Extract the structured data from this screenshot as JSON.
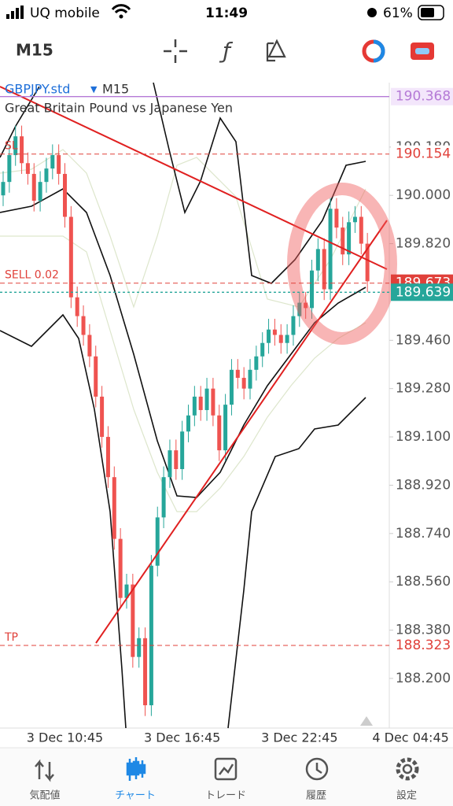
{
  "status_bar": {
    "carrier": "UQ mobile",
    "time": "11:49",
    "battery": "61%"
  },
  "toolbar": {
    "timeframe": "M15"
  },
  "chart_data": {
    "type": "candlestick",
    "title": "GBPJPY.std",
    "timeframe": "M15",
    "subtitle": "Great Britain Pound vs Japanese Yen",
    "categories": [
      null,
      null,
      null,
      null,
      null,
      null,
      null,
      null,
      null,
      null,
      "3 Dec 10:45",
      null,
      null,
      null,
      null,
      null,
      null,
      null,
      null,
      null,
      null,
      null,
      null,
      null,
      null,
      null,
      null,
      null,
      null,
      "3 Dec 16:45",
      null,
      null,
      null,
      null,
      null,
      null,
      null,
      null,
      null,
      null,
      null,
      null,
      null,
      null,
      null,
      null,
      null,
      null,
      "3 Dec 22:45",
      null,
      null,
      null,
      null,
      null,
      null,
      null,
      null,
      null,
      null,
      null,
      null,
      null,
      null,
      null,
      null,
      null,
      "4 Dec 04:45"
    ],
    "open": [
      190.0,
      190.05,
      190.15,
      190.22,
      190.12,
      190.08,
      189.98,
      190.05,
      190.1,
      190.15,
      190.08,
      189.92,
      189.62,
      189.55,
      189.48,
      189.4,
      189.25,
      189.1,
      188.95,
      188.72,
      188.5,
      188.55,
      188.28,
      188.35,
      188.1,
      188.62,
      188.8,
      188.95,
      189.05,
      188.98,
      189.12,
      189.18,
      189.25,
      189.2,
      189.28,
      189.18,
      189.05,
      189.22,
      189.35,
      189.32,
      189.28,
      189.35,
      189.4,
      189.45,
      189.5,
      189.48,
      189.45,
      189.48,
      189.55,
      189.6,
      189.58,
      189.72,
      189.8,
      189.65,
      189.95,
      189.88,
      189.78,
      189.9,
      189.92,
      189.82,
      null,
      null,
      null,
      null,
      null,
      null,
      null
    ],
    "high": [
      190.09,
      190.19,
      190.26,
      190.26,
      190.16,
      190.12,
      190.09,
      190.14,
      190.19,
      190.19,
      190.12,
      189.96,
      189.66,
      189.59,
      189.52,
      189.44,
      189.29,
      189.14,
      188.99,
      188.76,
      188.59,
      188.59,
      188.39,
      188.39,
      188.66,
      188.84,
      188.99,
      189.09,
      189.09,
      189.16,
      189.22,
      189.29,
      189.29,
      189.32,
      189.32,
      189.22,
      189.26,
      189.39,
      189.39,
      189.36,
      189.39,
      189.44,
      189.49,
      189.54,
      189.54,
      189.52,
      189.52,
      189.59,
      189.64,
      189.64,
      189.76,
      189.84,
      189.84,
      189.99,
      189.99,
      189.92,
      189.94,
      189.96,
      189.96,
      189.86,
      null,
      null,
      null,
      null,
      null,
      null,
      null
    ],
    "low": [
      189.96,
      190.01,
      190.11,
      190.08,
      190.04,
      189.94,
      189.94,
      190.01,
      190.06,
      190.04,
      189.88,
      189.58,
      189.51,
      189.44,
      189.36,
      189.21,
      189.06,
      188.91,
      188.68,
      188.46,
      188.46,
      188.24,
      188.24,
      188.06,
      188.06,
      188.58,
      188.76,
      188.91,
      188.94,
      188.94,
      189.08,
      189.14,
      189.16,
      189.16,
      189.14,
      189.01,
      189.01,
      189.18,
      189.28,
      189.24,
      189.24,
      189.31,
      189.36,
      189.41,
      189.44,
      189.41,
      189.41,
      189.44,
      189.51,
      189.54,
      189.54,
      189.68,
      189.61,
      189.61,
      189.84,
      189.74,
      189.74,
      189.86,
      189.78,
      189.64,
      null,
      null,
      null,
      null,
      null,
      null,
      null
    ],
    "close": [
      190.05,
      190.15,
      190.22,
      190.12,
      190.08,
      189.98,
      190.05,
      190.1,
      190.15,
      190.08,
      189.92,
      189.62,
      189.55,
      189.48,
      189.4,
      189.25,
      189.1,
      188.95,
      188.72,
      188.5,
      188.55,
      188.28,
      188.35,
      188.1,
      188.62,
      188.8,
      188.95,
      189.05,
      188.98,
      189.12,
      189.18,
      189.25,
      189.2,
      189.28,
      189.18,
      189.05,
      189.22,
      189.35,
      189.32,
      189.28,
      189.35,
      189.4,
      189.45,
      189.5,
      189.48,
      189.45,
      189.48,
      189.55,
      189.6,
      189.58,
      189.72,
      189.8,
      189.65,
      189.95,
      189.88,
      189.78,
      189.9,
      189.92,
      189.82,
      189.68,
      null,
      null,
      null,
      null,
      null,
      null,
      null
    ],
    "up_color": "#26a69a",
    "down_color": "#ef5350",
    "ylim": [
      188.015,
      190.42
    ],
    "yticks": [
      {
        "value": 190.18,
        "label": "190.180"
      },
      {
        "value": 190,
        "label": "190.000"
      },
      {
        "value": 189.82,
        "label": "189.820"
      },
      {
        "value": 189.46,
        "label": "189.460"
      },
      {
        "value": 189.28,
        "label": "189.280"
      },
      {
        "value": 189.1,
        "label": "189.100"
      },
      {
        "value": 188.92,
        "label": "188.920"
      },
      {
        "value": 188.74,
        "label": "188.740"
      },
      {
        "value": 188.56,
        "label": "188.560"
      },
      {
        "value": 188.38,
        "label": "188.380"
      },
      {
        "value": 188.2,
        "label": "188.200"
      }
    ],
    "price_lines": [
      {
        "value": 190.368,
        "color": "#b57ad6"
      },
      {
        "name": "SL",
        "value": 190.154,
        "color": "#e0403a"
      },
      {
        "name": "SELL 0.02",
        "value": 189.673,
        "color": "#e0403a"
      },
      {
        "value": 189.639,
        "color": "#26a69a"
      },
      {
        "name": "TP",
        "value": 188.323,
        "color": "#e0403a"
      }
    ]
  },
  "tabs": [
    "気配値",
    "チャート",
    "トレード",
    "履歴",
    "設定"
  ]
}
